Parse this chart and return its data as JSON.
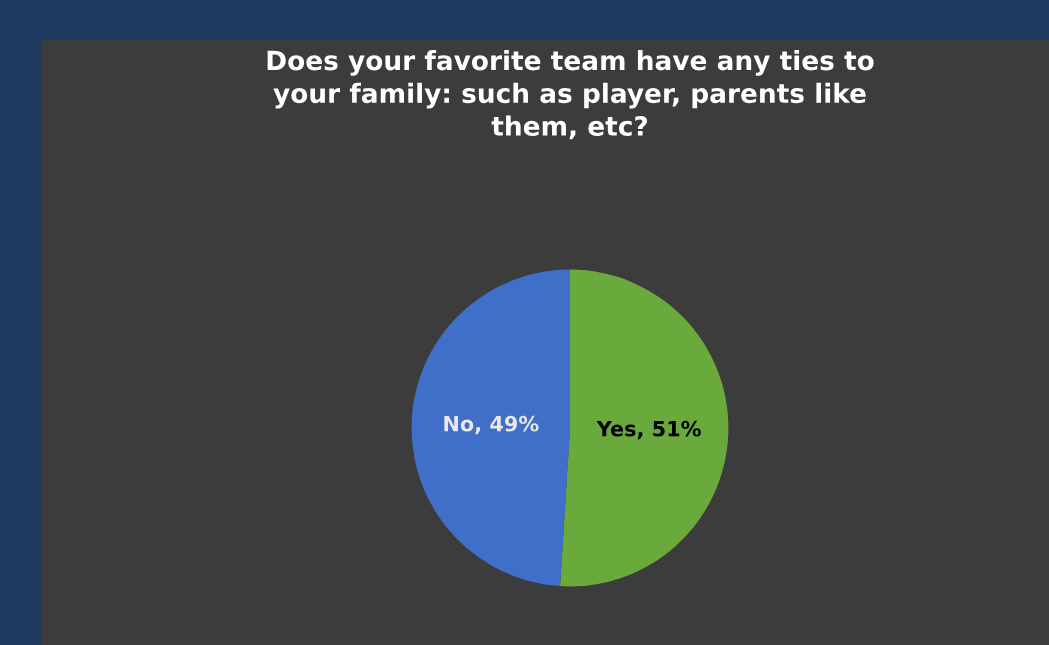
{
  "chart_data": {
    "type": "pie",
    "title": "Does your favorite team have any ties to\nyour family: such as player, parents like\nthem, etc?",
    "categories": [
      "Yes",
      "No"
    ],
    "values": [
      51,
      49
    ],
    "value_labels": [
      "51%",
      "49%"
    ],
    "colors": [
      "#6aaa3c",
      "#3f6fc8"
    ]
  }
}
